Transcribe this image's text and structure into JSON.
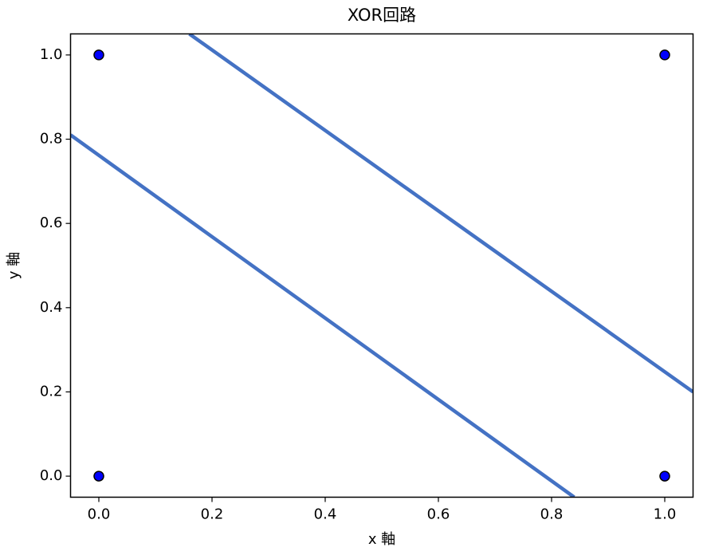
{
  "chart_data": {
    "type": "scatter",
    "title": "XOR回路",
    "x_label": "x 軸",
    "y_label": "y 軸",
    "xlim": [
      -0.05,
      1.05
    ],
    "ylim": [
      -0.05,
      1.05
    ],
    "xticks": [
      {
        "value": 0,
        "label": "0.0"
      },
      {
        "value": 0.2,
        "label": "0.2"
      },
      {
        "value": 0.4,
        "label": "0.4"
      },
      {
        "value": 0.6,
        "label": "0.6"
      },
      {
        "value": 0.8,
        "label": "0.8"
      },
      {
        "value": 1,
        "label": "1.0"
      }
    ],
    "yticks": [
      {
        "value": 0,
        "label": "0.0"
      },
      {
        "value": 0.2,
        "label": "0.2"
      },
      {
        "value": 0.4,
        "label": "0.4"
      },
      {
        "value": 0.6,
        "label": "0.6"
      },
      {
        "value": 0.8,
        "label": "0.8"
      },
      {
        "value": 1,
        "label": "1.0"
      }
    ],
    "grid": false,
    "series": [
      {
        "type": "scatter",
        "color": "#0000ff",
        "x": [
          0,
          0,
          1,
          1
        ],
        "values": [
          0,
          1,
          0,
          1
        ]
      },
      {
        "type": "line",
        "color": "#4472c4",
        "x": [
          -0.05,
          0.84
        ],
        "values": [
          0.81,
          -0.05
        ]
      },
      {
        "type": "line",
        "color": "#4472c4",
        "x": [
          0.16,
          1.05
        ],
        "values": [
          1.05,
          0.2
        ]
      }
    ]
  }
}
